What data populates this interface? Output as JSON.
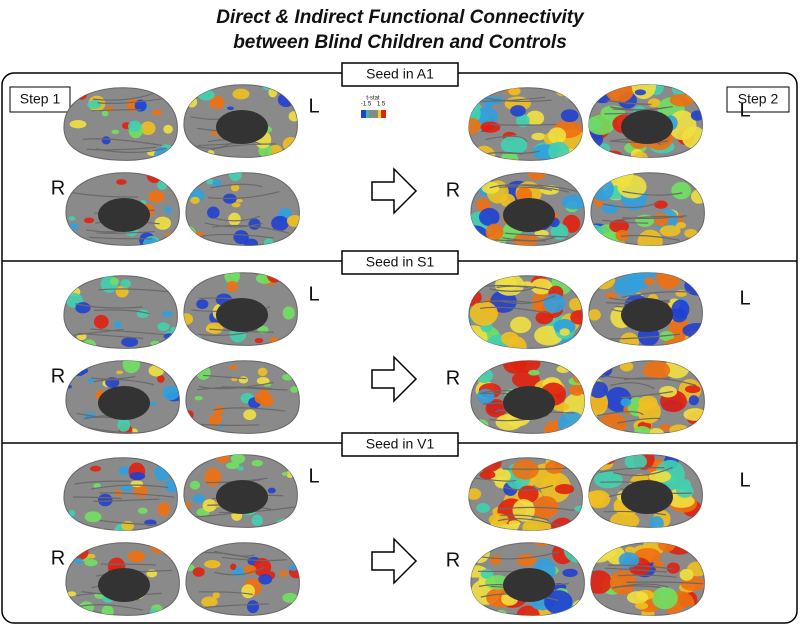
{
  "title": [
    "Direct & Indirect Functional Connectivity",
    "between Blind Children and Controls"
  ],
  "step_labels": [
    "Step 1",
    "Step 2"
  ],
  "colorbar": {
    "label": "t-stat",
    "min": -1.5,
    "max": 1.5
  },
  "panels": [
    {
      "seed": "Seed in A1",
      "step1_hemispheres": [
        "L",
        "R"
      ],
      "step2_hemispheres": [
        "L",
        "R"
      ]
    },
    {
      "seed": "Seed in S1",
      "step1_hemispheres": [
        "L",
        "R"
      ],
      "step2_hemispheres": [
        "L",
        "R"
      ]
    },
    {
      "seed": "Seed in V1",
      "step1_hemispheres": [
        "L",
        "R"
      ],
      "step2_hemispheres": [
        "L",
        "R"
      ]
    }
  ]
}
